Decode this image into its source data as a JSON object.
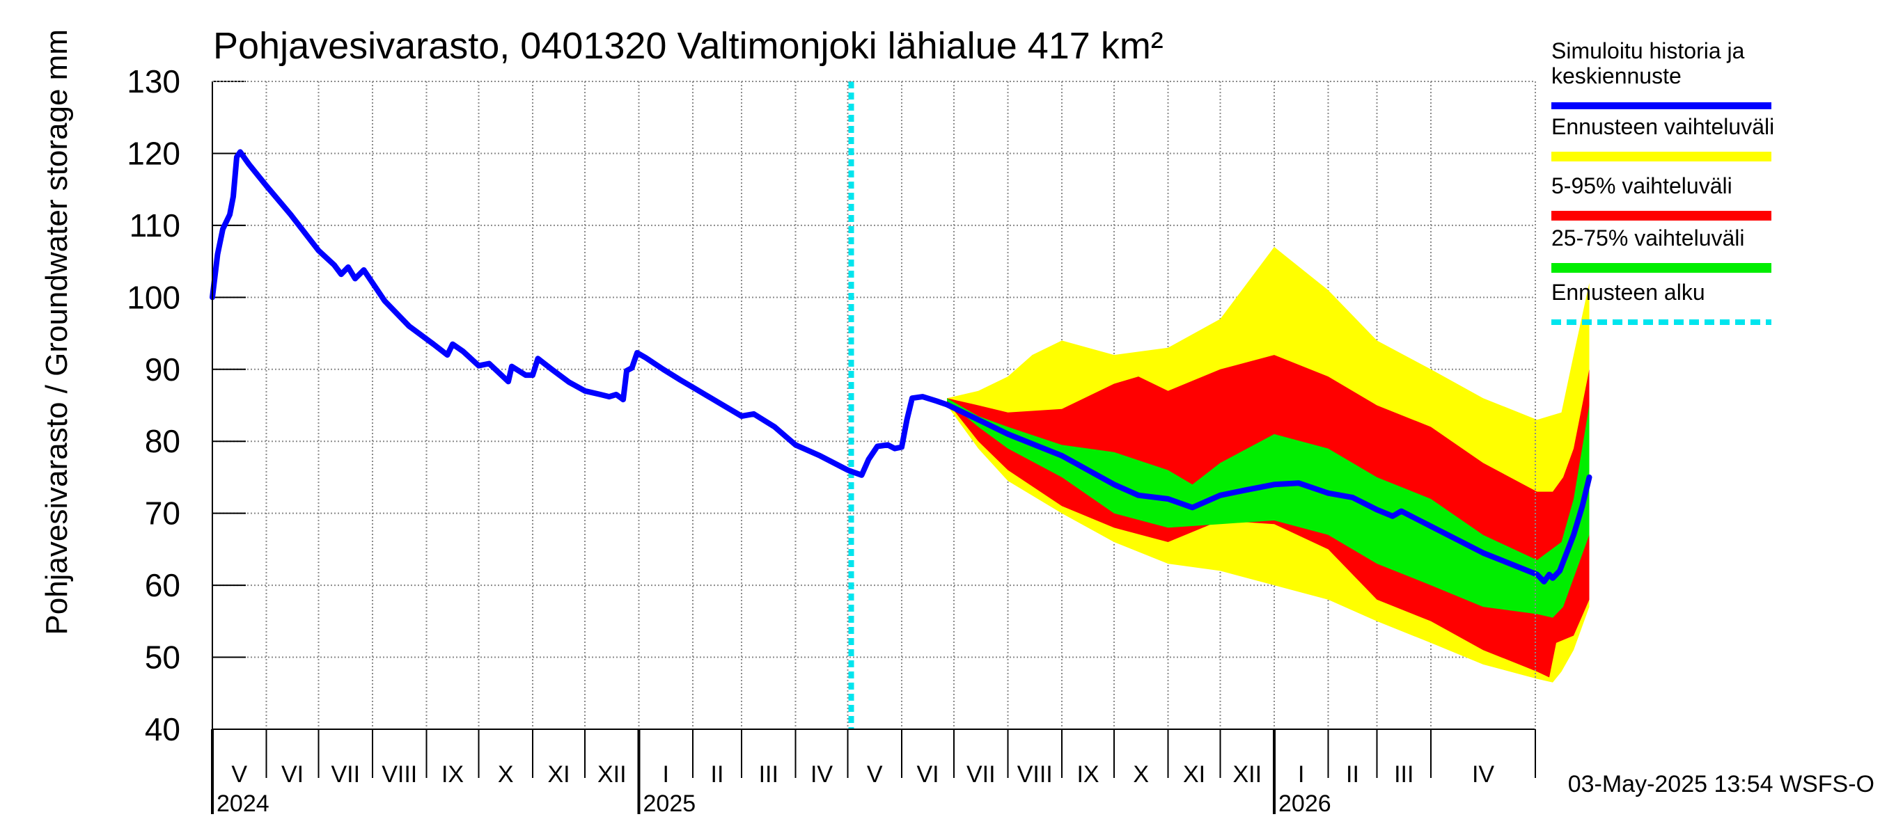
{
  "chart_data": {
    "type": "area",
    "title": "Pohjavesivarasto, 0401320 Valtimonjoki lähialue 417 km²",
    "ylabel": "Pohjavesivarasto / Groundwater storage   mm",
    "ylim": [
      40,
      130
    ],
    "yticks": [
      40,
      50,
      60,
      70,
      80,
      90,
      100,
      110,
      120,
      130
    ],
    "xlim": [
      "2024-05-01",
      "2026-05-31"
    ],
    "grid": true,
    "legend_position": "right",
    "months": [
      {
        "label": "V",
        "start": "2024-05-01"
      },
      {
        "label": "VI",
        "start": "2024-06-01"
      },
      {
        "label": "VII",
        "start": "2024-07-01"
      },
      {
        "label": "VIII",
        "start": "2024-08-01"
      },
      {
        "label": "IX",
        "start": "2024-09-01"
      },
      {
        "label": "X",
        "start": "2024-10-01"
      },
      {
        "label": "XI",
        "start": "2024-11-01"
      },
      {
        "label": "XII",
        "start": "2024-12-01"
      },
      {
        "label": "I",
        "start": "2025-01-01"
      },
      {
        "label": "II",
        "start": "2025-02-01"
      },
      {
        "label": "III",
        "start": "2025-03-01"
      },
      {
        "label": "IV",
        "start": "2025-04-01"
      },
      {
        "label": "V",
        "start": "2025-05-01"
      },
      {
        "label": "VI",
        "start": "2025-06-01"
      },
      {
        "label": "VII",
        "start": "2025-07-01"
      },
      {
        "label": "VIII",
        "start": "2025-08-01"
      },
      {
        "label": "IX",
        "start": "2025-09-01"
      },
      {
        "label": "X",
        "start": "2025-10-01"
      },
      {
        "label": "XI",
        "start": "2025-11-01"
      },
      {
        "label": "XII",
        "start": "2025-12-01"
      },
      {
        "label": "I",
        "start": "2026-01-01"
      },
      {
        "label": "II",
        "start": "2026-02-01"
      },
      {
        "label": "III",
        "start": "2026-03-01"
      },
      {
        "label": "IV",
        "start": "2026-04-01"
      }
    ],
    "years": [
      {
        "label": "2024",
        "date": "2024-05-01"
      },
      {
        "label": "2025",
        "date": "2025-01-01"
      },
      {
        "label": "2026",
        "date": "2026-01-01"
      }
    ],
    "forecast_start": "2025-05-03",
    "series": [
      {
        "name": "Simuloitu historia ja keskiennuste",
        "color": "#0000ff",
        "kind": "line",
        "points": [
          [
            "2024-05-01",
            100
          ],
          [
            "2024-05-04",
            106
          ],
          [
            "2024-05-07",
            109.5
          ],
          [
            "2024-05-11",
            111.5
          ],
          [
            "2024-05-13",
            114
          ],
          [
            "2024-05-15",
            119.5
          ],
          [
            "2024-05-17",
            120.2
          ],
          [
            "2024-05-22",
            118.5
          ],
          [
            "2024-06-01",
            115.5
          ],
          [
            "2024-06-15",
            111.5
          ],
          [
            "2024-07-01",
            106.5
          ],
          [
            "2024-07-10",
            104.5
          ],
          [
            "2024-07-14",
            103.2
          ],
          [
            "2024-07-18",
            104.2
          ],
          [
            "2024-07-22",
            102.6
          ],
          [
            "2024-07-27",
            103.8
          ],
          [
            "2024-08-08",
            99.5
          ],
          [
            "2024-08-22",
            96
          ],
          [
            "2024-09-05",
            93.5
          ],
          [
            "2024-09-13",
            92
          ],
          [
            "2024-09-16",
            93.5
          ],
          [
            "2024-09-22",
            92.5
          ],
          [
            "2024-10-01",
            90.5
          ],
          [
            "2024-10-07",
            90.8
          ],
          [
            "2024-10-18",
            88.3
          ],
          [
            "2024-10-20",
            90.4
          ],
          [
            "2024-10-28",
            89.2
          ],
          [
            "2024-11-01",
            89.2
          ],
          [
            "2024-11-04",
            91.5
          ],
          [
            "2024-11-12",
            90
          ],
          [
            "2024-11-22",
            88.2
          ],
          [
            "2024-12-01",
            87
          ],
          [
            "2024-12-10",
            86.5
          ],
          [
            "2024-12-15",
            86.2
          ],
          [
            "2024-12-19",
            86.5
          ],
          [
            "2024-12-23",
            85.8
          ],
          [
            "2024-12-25",
            89.8
          ],
          [
            "2024-12-28",
            90.2
          ],
          [
            "2024-12-31",
            92.3
          ],
          [
            "2025-01-05",
            91.6
          ],
          [
            "2025-01-15",
            90
          ],
          [
            "2025-01-25",
            88.5
          ],
          [
            "2025-02-01",
            87.5
          ],
          [
            "2025-02-15",
            85.5
          ],
          [
            "2025-03-01",
            83.5
          ],
          [
            "2025-03-08",
            83.8
          ],
          [
            "2025-03-20",
            82
          ],
          [
            "2025-04-01",
            79.5
          ],
          [
            "2025-04-15",
            78
          ],
          [
            "2025-05-01",
            76
          ],
          [
            "2025-05-09",
            75.3
          ],
          [
            "2025-05-13",
            77.5
          ],
          [
            "2025-05-18",
            79.3
          ],
          [
            "2025-05-24",
            79.5
          ],
          [
            "2025-05-28",
            79
          ],
          [
            "2025-06-01",
            79.2
          ],
          [
            "2025-06-04",
            83
          ],
          [
            "2025-06-07",
            86
          ],
          [
            "2025-06-13",
            86.2
          ],
          [
            "2025-06-21",
            85.6
          ],
          [
            "2025-06-27",
            85.1
          ],
          [
            "2025-07-15",
            83
          ],
          [
            "2025-08-01",
            81
          ],
          [
            "2025-09-01",
            78
          ],
          [
            "2025-10-01",
            74
          ],
          [
            "2025-10-15",
            72.5
          ],
          [
            "2025-11-01",
            72
          ],
          [
            "2025-11-15",
            70.8
          ],
          [
            "2025-12-01",
            72.5
          ],
          [
            "2025-12-15",
            73.2
          ],
          [
            "2026-01-01",
            74
          ],
          [
            "2026-01-15",
            74.2
          ],
          [
            "2026-02-01",
            72.8
          ],
          [
            "2026-02-15",
            72.2
          ],
          [
            "2026-03-01",
            70.5
          ],
          [
            "2026-03-10",
            69.6
          ],
          [
            "2026-03-15",
            70.3
          ],
          [
            "2026-04-01",
            68.2
          ],
          [
            "2026-05-01",
            64.5
          ],
          [
            "2026-06-01",
            61.5
          ],
          [
            "2026-06-05",
            60.5
          ],
          [
            "2026-06-08",
            61.5
          ],
          [
            "2026-06-10",
            61
          ],
          [
            "2026-06-14",
            62
          ],
          [
            "2026-06-18",
            64.5
          ],
          [
            "2026-06-22",
            67
          ],
          [
            "2026-06-27",
            71
          ],
          [
            "2026-06-31",
            75
          ]
        ]
      },
      {
        "name": "Ennusteen vaihteluväli",
        "color": "#ffff00",
        "kind": "band",
        "upper": [
          [
            "2025-06-27",
            86
          ],
          [
            "2025-07-15",
            87
          ],
          [
            "2025-08-01",
            89
          ],
          [
            "2025-08-15",
            92
          ],
          [
            "2025-09-01",
            94
          ],
          [
            "2025-10-01",
            92
          ],
          [
            "2025-11-01",
            93
          ],
          [
            "2025-12-01",
            97
          ],
          [
            "2026-01-01",
            107
          ],
          [
            "2026-02-01",
            101
          ],
          [
            "2026-03-01",
            94
          ],
          [
            "2026-04-01",
            90
          ],
          [
            "2026-05-01",
            86
          ],
          [
            "2026-06-01",
            83
          ],
          [
            "2026-06-15",
            84
          ],
          [
            "2026-06-22",
            92
          ],
          [
            "2026-06-31",
            102
          ]
        ],
        "lower": [
          [
            "2025-06-27",
            85
          ],
          [
            "2025-07-15",
            79
          ],
          [
            "2025-08-01",
            74.5
          ],
          [
            "2025-09-01",
            70
          ],
          [
            "2025-10-01",
            66
          ],
          [
            "2025-11-01",
            63
          ],
          [
            "2025-12-01",
            62
          ],
          [
            "2026-01-01",
            60
          ],
          [
            "2026-02-01",
            58
          ],
          [
            "2026-03-01",
            55
          ],
          [
            "2026-04-01",
            52
          ],
          [
            "2026-05-01",
            49
          ],
          [
            "2026-06-01",
            47
          ],
          [
            "2026-06-10",
            46.5
          ],
          [
            "2026-06-15",
            48
          ],
          [
            "2026-06-22",
            51
          ],
          [
            "2026-06-31",
            57
          ]
        ]
      },
      {
        "name": "5-95% vaihteluväli",
        "color": "#ff0000",
        "kind": "band",
        "upper": [
          [
            "2025-06-27",
            86
          ],
          [
            "2025-07-15",
            85
          ],
          [
            "2025-08-01",
            84
          ],
          [
            "2025-09-01",
            84.5
          ],
          [
            "2025-10-01",
            88
          ],
          [
            "2025-10-15",
            89
          ],
          [
            "2025-11-01",
            87
          ],
          [
            "2025-12-01",
            90
          ],
          [
            "2026-01-01",
            92
          ],
          [
            "2026-02-01",
            89
          ],
          [
            "2026-03-01",
            85
          ],
          [
            "2026-04-01",
            82
          ],
          [
            "2026-05-01",
            77
          ],
          [
            "2026-06-01",
            73
          ],
          [
            "2026-06-10",
            73
          ],
          [
            "2026-06-16",
            75
          ],
          [
            "2026-06-22",
            79
          ],
          [
            "2026-06-31",
            90
          ]
        ],
        "lower": [
          [
            "2025-06-27",
            85.5
          ],
          [
            "2025-07-15",
            80
          ],
          [
            "2025-08-01",
            76
          ],
          [
            "2025-09-01",
            71
          ],
          [
            "2025-10-01",
            68
          ],
          [
            "2025-11-01",
            66
          ],
          [
            "2025-12-01",
            69
          ],
          [
            "2026-01-01",
            68.5
          ],
          [
            "2026-02-01",
            65
          ],
          [
            "2026-03-01",
            58
          ],
          [
            "2026-04-01",
            55
          ],
          [
            "2026-05-01",
            51
          ],
          [
            "2026-06-01",
            48
          ],
          [
            "2026-06-08",
            47.2
          ],
          [
            "2026-06-12",
            52
          ],
          [
            "2026-06-22",
            53
          ],
          [
            "2026-06-31",
            58
          ]
        ]
      },
      {
        "name": "25-75% vaihteluväli",
        "color": "#00ee00",
        "kind": "band",
        "upper": [
          [
            "2025-06-27",
            86
          ],
          [
            "2025-07-15",
            83.5
          ],
          [
            "2025-08-01",
            82
          ],
          [
            "2025-09-01",
            79.5
          ],
          [
            "2025-10-01",
            78.5
          ],
          [
            "2025-11-01",
            76
          ],
          [
            "2025-11-15",
            74
          ],
          [
            "2025-12-01",
            77
          ],
          [
            "2026-01-01",
            81
          ],
          [
            "2026-02-01",
            79
          ],
          [
            "2026-03-01",
            75
          ],
          [
            "2026-04-01",
            72
          ],
          [
            "2026-05-01",
            67
          ],
          [
            "2026-06-01",
            63.5
          ],
          [
            "2026-06-15",
            66
          ],
          [
            "2026-06-22",
            72
          ],
          [
            "2026-06-31",
            85
          ]
        ],
        "lower": [
          [
            "2025-06-27",
            85.6
          ],
          [
            "2025-07-15",
            82
          ],
          [
            "2025-08-01",
            79
          ],
          [
            "2025-09-01",
            75
          ],
          [
            "2025-10-01",
            70
          ],
          [
            "2025-11-01",
            68
          ],
          [
            "2025-12-01",
            68.5
          ],
          [
            "2026-01-01",
            69
          ],
          [
            "2026-02-01",
            67
          ],
          [
            "2026-03-01",
            63
          ],
          [
            "2026-04-01",
            60
          ],
          [
            "2026-05-01",
            57
          ],
          [
            "2026-06-01",
            56
          ],
          [
            "2026-06-10",
            55.5
          ],
          [
            "2026-06-16",
            57
          ],
          [
            "2026-06-22",
            61
          ],
          [
            "2026-06-31",
            67
          ]
        ]
      },
      {
        "name": "Ennusteen alku",
        "color": "#00e5ee",
        "kind": "vline"
      }
    ],
    "footer": "03-May-2025 13:54 WSFS-O"
  }
}
